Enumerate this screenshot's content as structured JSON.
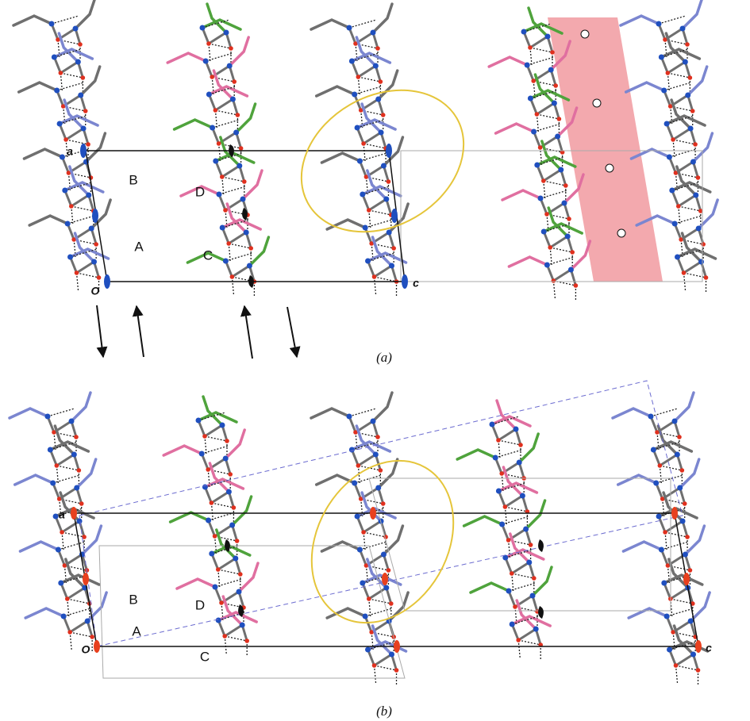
{
  "panels": [
    {
      "caption": "(a)",
      "cell_labels": [
        "a",
        "O",
        "c"
      ],
      "molecule_labels": [
        "B",
        "A",
        "D",
        "C"
      ]
    },
    {
      "caption": "(b)",
      "cell_labels": [
        "a",
        "O",
        "c"
      ],
      "molecule_labels": [
        "B",
        "A",
        "D",
        "C"
      ]
    }
  ]
}
